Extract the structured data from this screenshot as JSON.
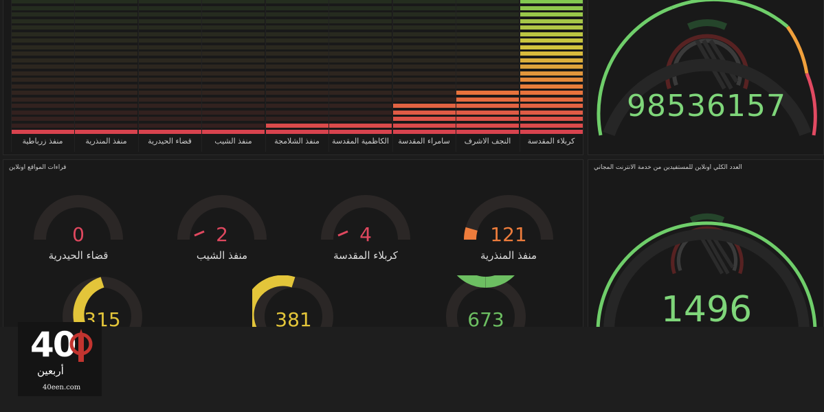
{
  "bar_panel": {
    "chart_data": {
      "type": "bar",
      "categories": [
        "كربلاء المقدسة",
        "النجف الاشرف",
        "سامراء المقدسة",
        "الكاظمية المقدسة",
        "منفذ الشلامجة",
        "منفذ الشيب",
        "قضاء الحيدرية",
        "منفذ المنذرية",
        "منفذ زرباطية"
      ],
      "values": [
        100,
        33,
        23,
        8,
        8,
        3,
        3,
        3,
        3
      ],
      "ylim": [
        0,
        100
      ],
      "title": "",
      "xlabel": "",
      "ylabel": ""
    }
  },
  "total_gauge_top": {
    "value": "98536157"
  },
  "sites_panel": {
    "title": "قراءات المواقع اونلاين",
    "gauges": [
      {
        "label": "منفذ المنذرية",
        "value": "121",
        "fraction": 0.09,
        "color": "#ef7d3c"
      },
      {
        "label": "كربلاء المقدسة",
        "value": "4",
        "fraction": 0.03,
        "color": "#e0485f"
      },
      {
        "label": "منفذ الشيب",
        "value": "2",
        "fraction": 0.02,
        "color": "#e0485f"
      },
      {
        "label": "قضاء الحيدرية",
        "value": "0",
        "fraction": 0.0,
        "color": "#e0485f"
      }
    ],
    "gauges_row2": [
      {
        "value": "673",
        "fraction": 1.0,
        "color": "#6dbf62"
      },
      {
        "value": "381",
        "fraction": 0.55,
        "color": "#e3c53a"
      },
      {
        "value": "315",
        "fraction": 0.45,
        "color": "#e3c53a"
      }
    ]
  },
  "online_panel": {
    "title": "العدد الكلي اونلاين للمستفيدين من خدمة الانترنت المجاني",
    "value": "1496"
  },
  "logo": {
    "number": "40",
    "arabic": "أربعين",
    "site": "40een.com"
  }
}
